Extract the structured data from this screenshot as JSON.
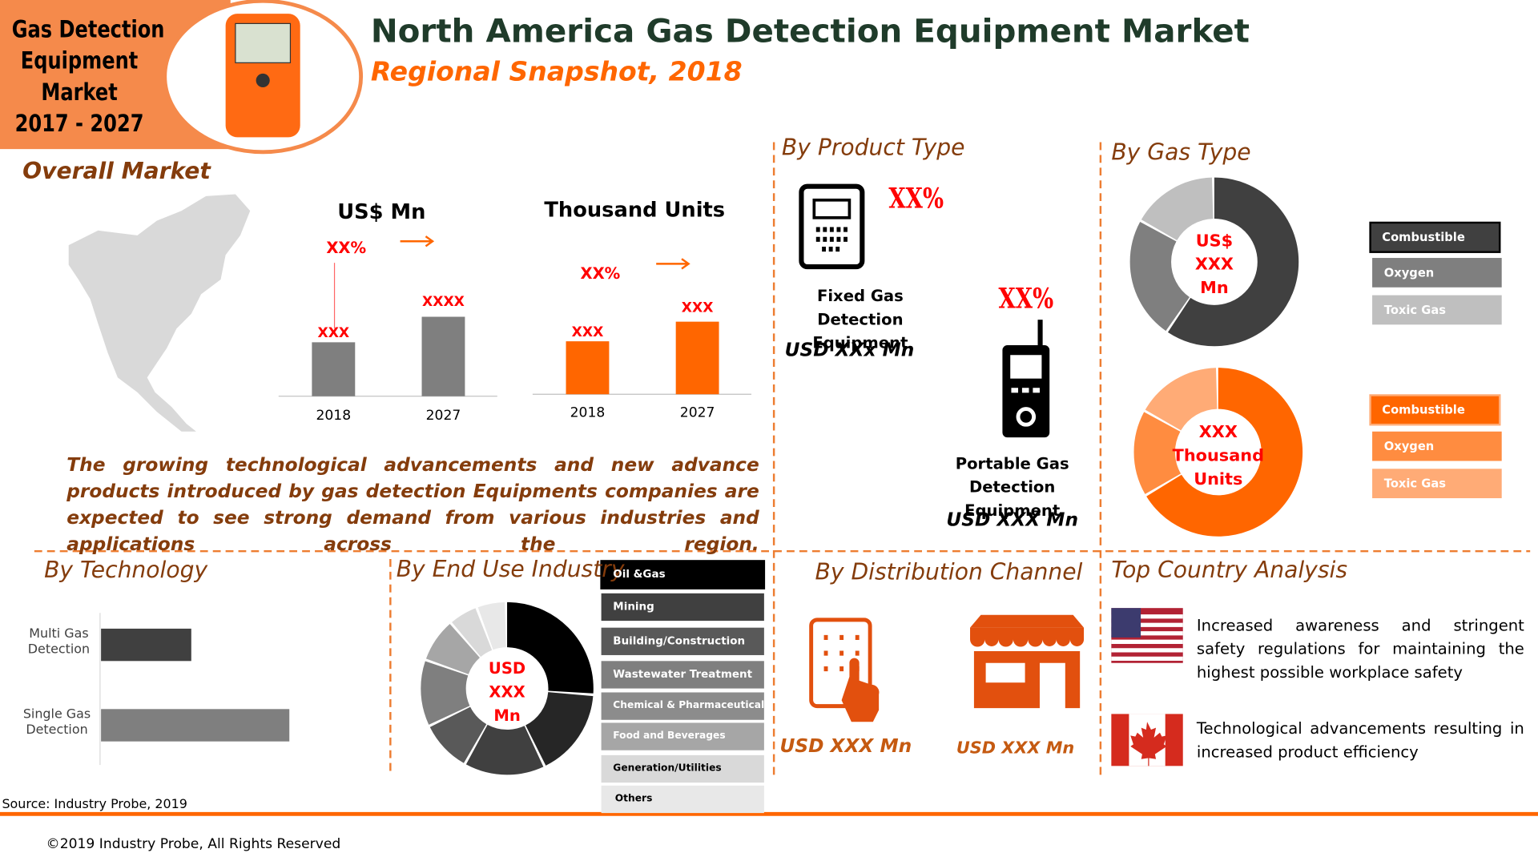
{
  "badge": {
    "lines": [
      "Gas Detection",
      "Equipment",
      "Market",
      "2017 - 2027"
    ]
  },
  "header": {
    "title": "North America Gas Detection Equipment Market",
    "subtitle": "Regional Snapshot, 2018"
  },
  "overall_market": {
    "heading": "Overall Market",
    "value_chart": {
      "title": "US$ Mn",
      "growth": "XX%",
      "bars": [
        {
          "year": "2018",
          "label": "XXX"
        },
        {
          "year": "2027",
          "label": "XXXX"
        }
      ]
    },
    "volume_chart": {
      "title": "Thousand Units",
      "growth": "XX%",
      "bars": [
        {
          "year": "2018",
          "label": "XXX"
        },
        {
          "year": "2027",
          "label": "XXX"
        }
      ]
    },
    "description": "The growing technological advancements and new advance products introduced by gas detection Equipments companies are expected to see strong demand from various industries and applications across the region."
  },
  "product_type": {
    "heading": "By Product Type",
    "items": [
      {
        "share": "XX%",
        "name": "Fixed Gas Detection Equipment",
        "value": "USD XXx Mn"
      },
      {
        "share": "XX%",
        "name": "Portable Gas Detection Equipment",
        "value": "USD XXX Mn"
      }
    ]
  },
  "gas_type": {
    "heading": "By Gas Type",
    "value_donut": {
      "center": [
        "US$",
        "XXX",
        "Mn"
      ],
      "legend": [
        "Combustible",
        "Oxygen",
        "Toxic Gas"
      ]
    },
    "volume_donut": {
      "center": [
        "XXX",
        "Thousand",
        "Units"
      ],
      "legend": [
        "Combustible",
        "Oxygen",
        "Toxic Gas"
      ]
    }
  },
  "technology": {
    "heading": "By Technology",
    "categories": [
      "Multi Gas Detection",
      "Single Gas Detection"
    ]
  },
  "end_use": {
    "heading": "By End Use Industry",
    "center": [
      "USD",
      "XXX",
      "Mn"
    ],
    "legend": [
      "Oil &Gas",
      "Mining",
      "Building/Construction",
      "Wastewater Treatment",
      "Chemical & Pharmaceutical",
      "Food and Beverages",
      "Generation/Utilities",
      "Others"
    ]
  },
  "distribution": {
    "heading": "By Distribution Channel",
    "values": [
      "USD XXX Mn",
      "USD XXX Mn"
    ]
  },
  "country": {
    "heading": "Top Country Analysis",
    "items": [
      "Increased awareness and stringent safety regulations for maintaining the highest possible workplace safety",
      "Technological advancements resulting in increased product efficiency"
    ]
  },
  "footer": {
    "source": "Source: Industry Probe, 2019",
    "copyright": "©2019 Industry Probe, All Rights Reserved"
  }
}
